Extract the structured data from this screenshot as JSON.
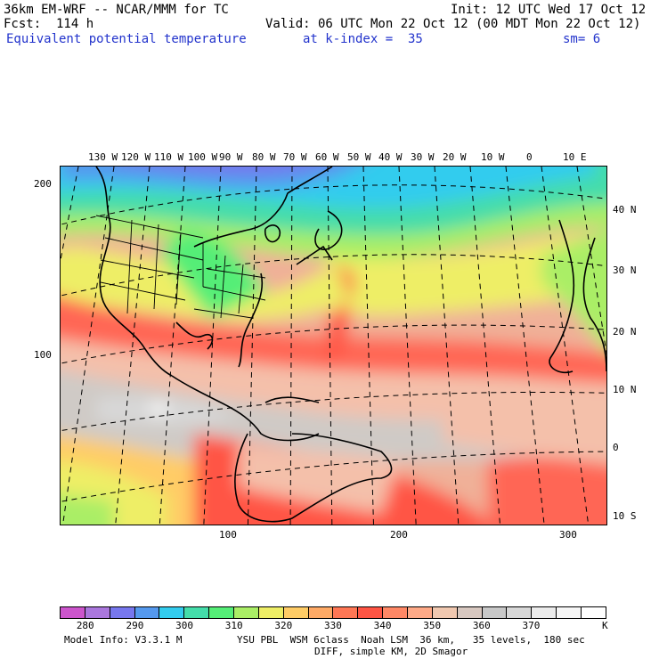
{
  "header": {
    "model": "36km EM-WRF -- NCAR/MMM for TC",
    "init": "Init: 12 UTC Wed 17 Oct 12",
    "fcst": "Fcst:  114 h",
    "valid": "Valid: 06 UTC Mon 22 Oct 12 (00 MDT Mon 22 Oct 12)",
    "field": "Equivalent potential temperature",
    "level": "at k-index =  35",
    "smooth": "sm= 6"
  },
  "axes": {
    "top_lon": [
      "130 W",
      "120 W",
      "110 W",
      "100 W",
      "90 W",
      "80 W",
      "70 W",
      "60 W",
      "50 W",
      "40 W",
      "30 W",
      "20 W",
      "10 W",
      "0",
      "10 E"
    ],
    "right_lat": [
      "40 N",
      "30 N",
      "20 N",
      "10 N",
      "0",
      "10 S"
    ],
    "left_grid": [
      "200",
      "100"
    ],
    "bottom_grid": [
      "100",
      "200",
      "300"
    ]
  },
  "colorbar": {
    "labels": [
      "280",
      "290",
      "300",
      "310",
      "320",
      "330",
      "340",
      "350",
      "360",
      "370"
    ],
    "unit": "K",
    "colors": [
      "#cc55cc",
      "#aa77dd",
      "#7777ee",
      "#5599ee",
      "#33ccee",
      "#44ddaa",
      "#55ee77",
      "#aaee66",
      "#eeee66",
      "#ffcc66",
      "#ffaa66",
      "#ff7755",
      "#ff5544",
      "#ff8866",
      "#ffaa88",
      "#f0c8b0",
      "#d8c8c0",
      "#c8c8c8",
      "#d8d8d8",
      "#ebebeb",
      "#f6f6f6",
      "#ffffff"
    ]
  },
  "footer": {
    "model_info": "Model Info: V3.3.1 M",
    "physics": "YSU PBL  WSM 6class  Noah LSM  36 km,   35 levels,  180 sec",
    "diff": "DIFF, simple KM, 2D Smagor"
  }
}
